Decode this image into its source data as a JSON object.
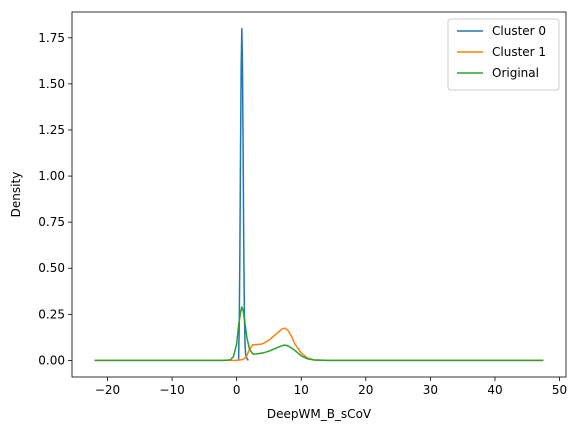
{
  "chart_data": {
    "type": "line",
    "title": "",
    "xlabel": "DeepWM_B_sCoV",
    "ylabel": "Density",
    "xlim": [
      -25.5,
      51.0
    ],
    "ylim": [
      -0.09,
      1.89
    ],
    "xticks": [
      -20,
      -10,
      0,
      10,
      20,
      30,
      40,
      50
    ],
    "xtick_labels": [
      "−20",
      "−10",
      "0",
      "10",
      "20",
      "30",
      "40",
      "50"
    ],
    "yticks": [
      0.0,
      0.25,
      0.5,
      0.75,
      1.0,
      1.25,
      1.5,
      1.75
    ],
    "ytick_labels": [
      "0.00",
      "0.25",
      "0.50",
      "0.75",
      "1.00",
      "1.25",
      "1.50",
      "1.75"
    ],
    "grid": false,
    "legend_position": "top-right",
    "series": [
      {
        "name": "Cluster 0",
        "color": "#1f77b4",
        "x": [
          0.3,
          0.4,
          0.5,
          0.6,
          0.7,
          0.8,
          0.9,
          1.0,
          1.1,
          1.2,
          1.3,
          1.4,
          1.5,
          1.6,
          1.8
        ],
        "y": [
          0.0,
          0.2,
          0.6,
          1.15,
          1.6,
          1.8,
          1.6,
          1.15,
          0.6,
          0.25,
          0.08,
          0.03,
          0.02,
          0.01,
          0.0
        ]
      },
      {
        "name": "Cluster 1",
        "color": "#ff7f0e",
        "x": [
          -22.0,
          -5.0,
          0.0,
          1.0,
          1.5,
          2.0,
          2.5,
          3.0,
          4.0,
          5.0,
          6.0,
          7.0,
          7.5,
          8.0,
          8.5,
          9.0,
          10.0,
          11.0,
          12.0,
          14.0,
          20.0,
          30.0,
          40.0,
          47.5
        ],
        "y": [
          0.0,
          0.0,
          0.0,
          0.005,
          0.02,
          0.06,
          0.085,
          0.085,
          0.09,
          0.11,
          0.14,
          0.17,
          0.175,
          0.16,
          0.13,
          0.09,
          0.04,
          0.012,
          0.003,
          0.0,
          0.0,
          0.0,
          0.0,
          0.0
        ]
      },
      {
        "name": "Original",
        "color": "#2ca02c",
        "x": [
          -22.0,
          -5.0,
          -2.0,
          -1.0,
          -0.5,
          0.0,
          0.3,
          0.6,
          0.8,
          1.0,
          1.3,
          1.6,
          2.0,
          2.5,
          3.0,
          4.0,
          5.0,
          6.0,
          7.0,
          7.5,
          8.0,
          9.0,
          10.0,
          11.0,
          12.0,
          14.0,
          20.0,
          30.0,
          40.0,
          47.5
        ],
        "y": [
          0.0,
          0.0,
          0.0,
          0.003,
          0.02,
          0.09,
          0.19,
          0.26,
          0.29,
          0.27,
          0.2,
          0.12,
          0.06,
          0.035,
          0.035,
          0.04,
          0.05,
          0.065,
          0.08,
          0.083,
          0.078,
          0.055,
          0.025,
          0.008,
          0.002,
          0.0,
          0.0,
          0.0,
          0.0,
          0.0
        ]
      }
    ]
  }
}
